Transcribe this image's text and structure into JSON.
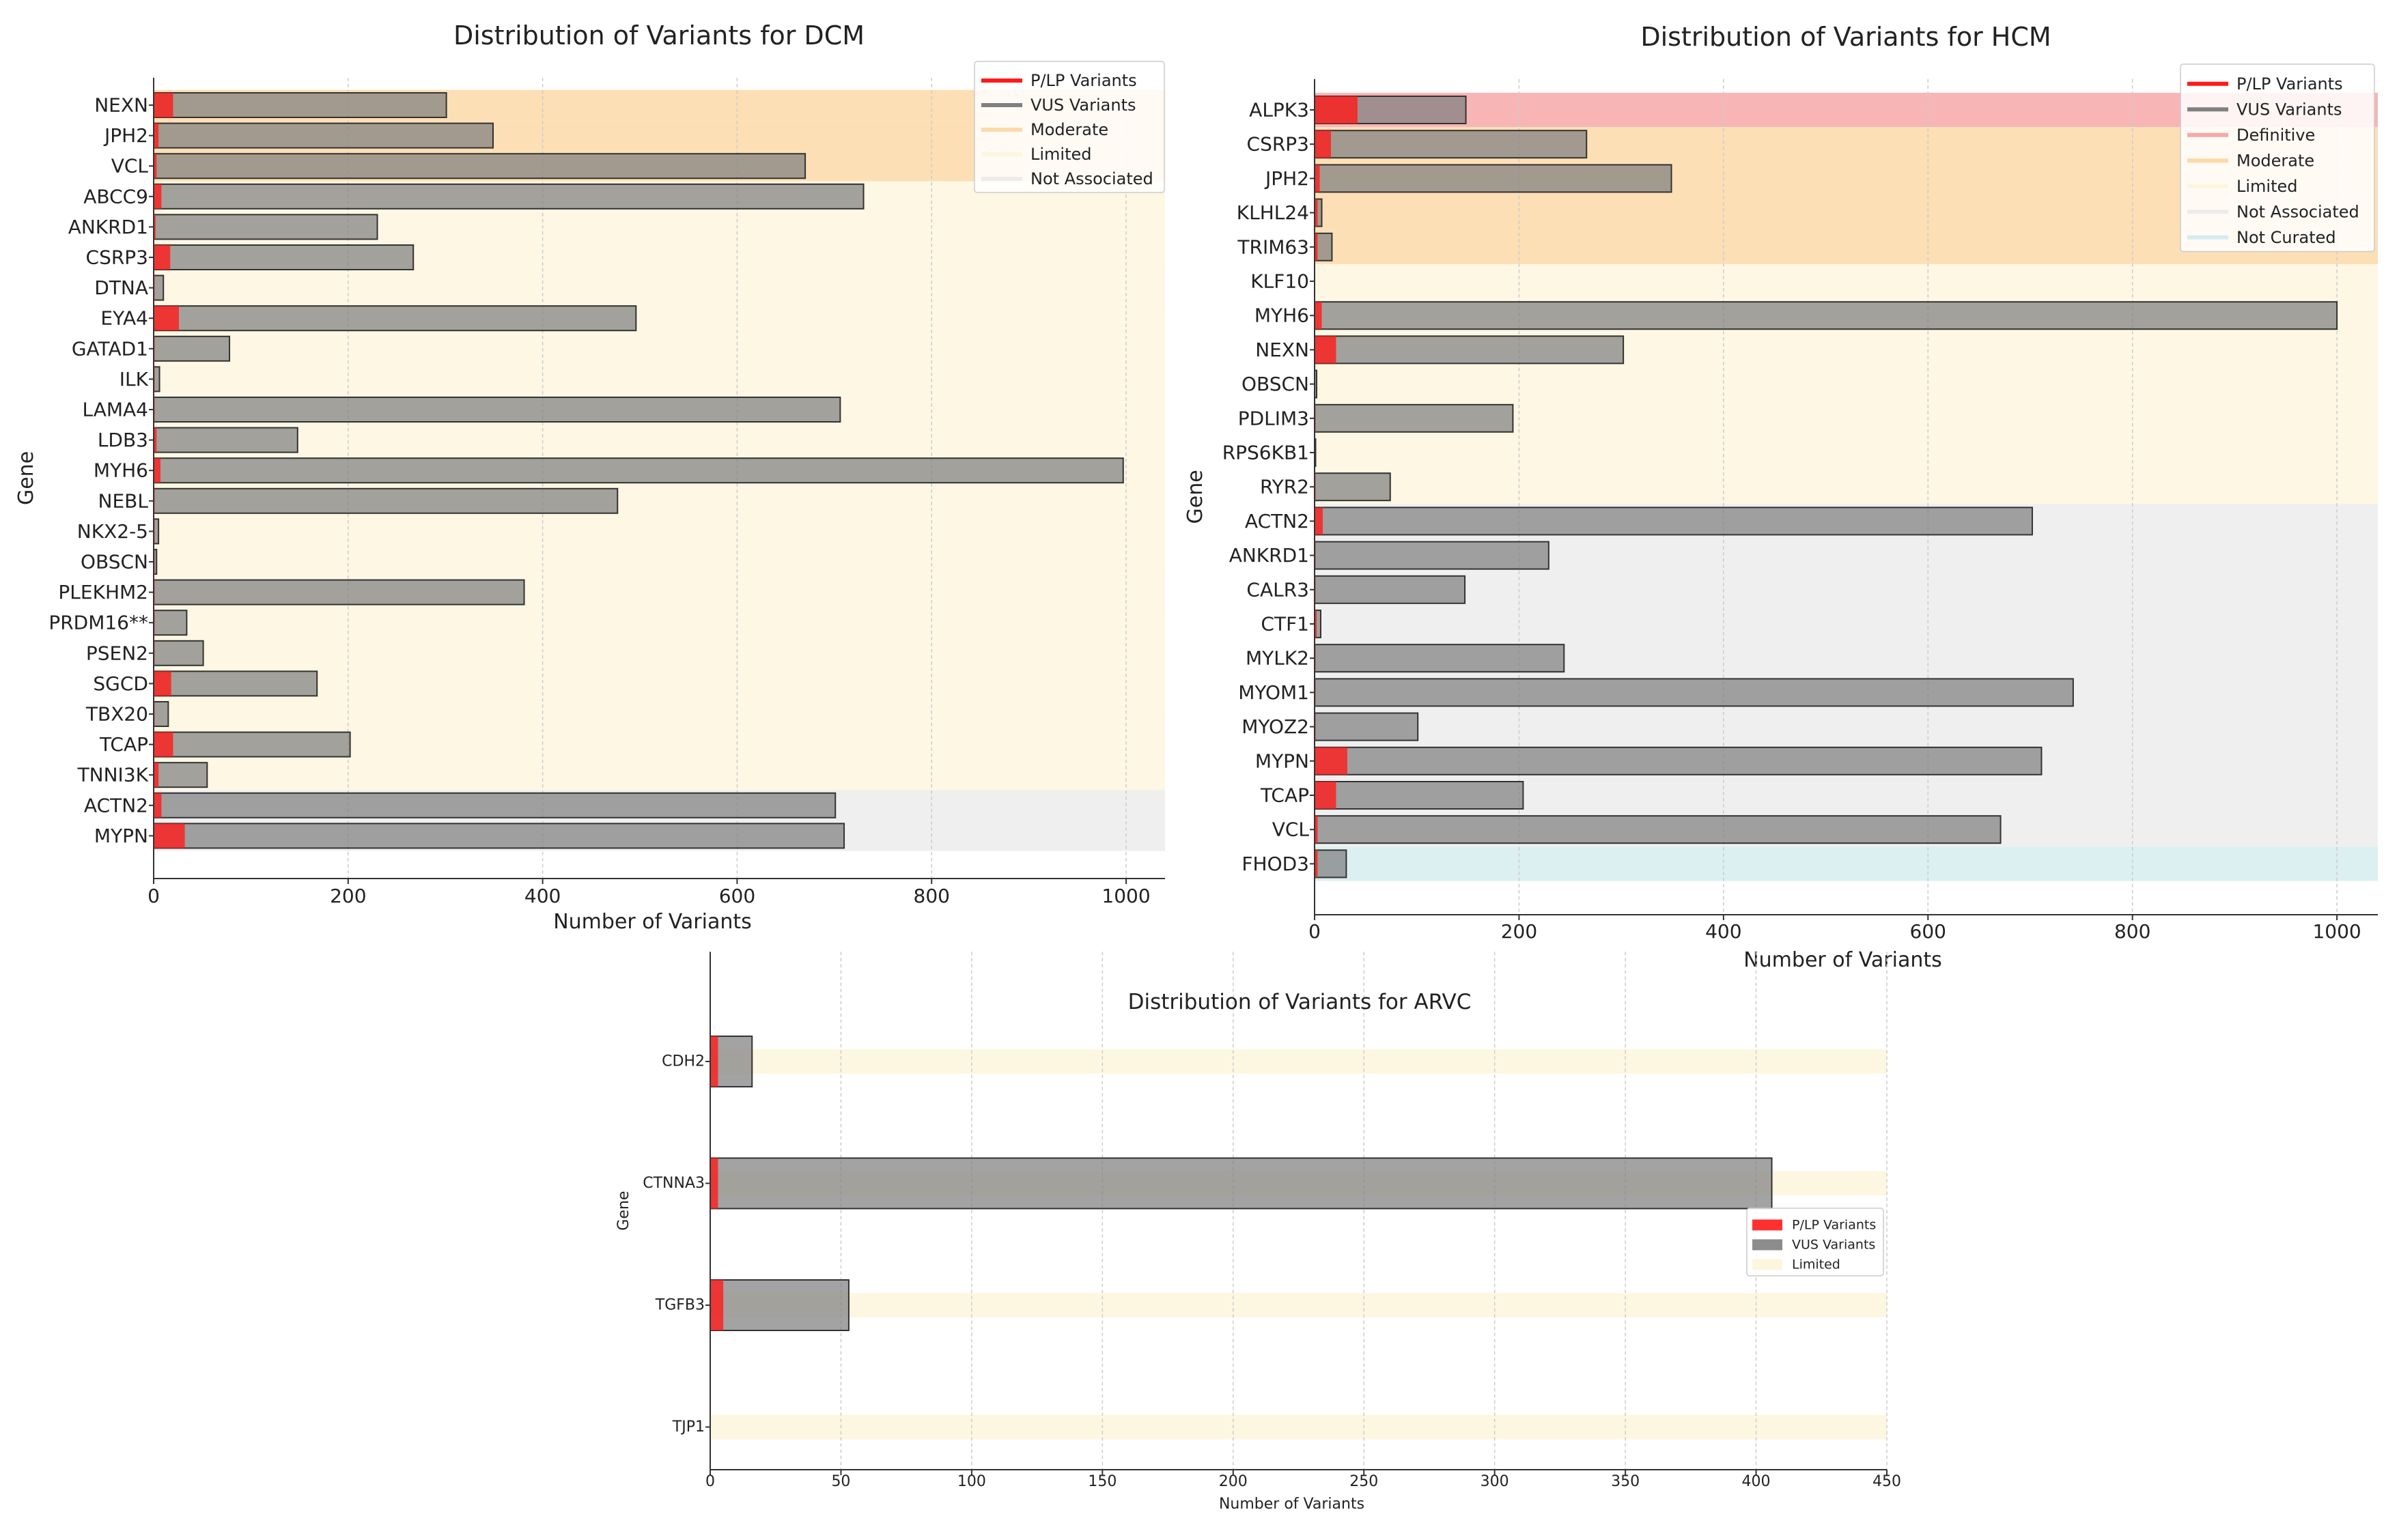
{
  "figure": {
    "description_panels": [
      "DCM",
      "HCM",
      "ARVC"
    ]
  },
  "colors": {
    "plp": "#ff1a1a",
    "vus": "#808080",
    "definitive": "#f7a8a8",
    "moderate": "#fcd9a8",
    "limited": "#fdf6de",
    "not_associated": "#ececec",
    "not_curated": "#d6ecee"
  },
  "chart_data": [
    {
      "id": "dcm",
      "type": "bar",
      "orientation": "horizontal",
      "title": "Distribution of Variants for DCM",
      "xlabel": "Number of Variants",
      "ylabel": "Gene",
      "xlim": [
        0,
        1040
      ],
      "xticks": [
        0,
        200,
        400,
        600,
        800,
        1000
      ],
      "legend_position": "top-right",
      "legend": [
        {
          "label": "P/LP Variants",
          "kind": "plp"
        },
        {
          "label": "VUS Variants",
          "kind": "vus"
        },
        {
          "label": "Moderate",
          "kind": "moderate"
        },
        {
          "label": "Limited",
          "kind": "limited"
        },
        {
          "label": "Not Associated",
          "kind": "not_associated"
        }
      ],
      "categories": [
        "NEXN",
        "JPH2",
        "VCL",
        "ABCC9",
        "ANKRD1",
        "CSRP3",
        "DTNA",
        "EYA4",
        "GATAD1",
        "ILK",
        "LAMA4",
        "LDB3",
        "MYH6",
        "NEBL",
        "NKX2-5",
        "OBSCN",
        "PLEKHM2",
        "PRDM16**",
        "PSEN2",
        "SGCD",
        "TBX20",
        "TCAP",
        "TNNI3K",
        "ACTN2",
        "MYPN"
      ],
      "classification": [
        "moderate",
        "moderate",
        "moderate",
        "limited",
        "limited",
        "limited",
        "limited",
        "limited",
        "limited",
        "limited",
        "limited",
        "limited",
        "limited",
        "limited",
        "limited",
        "limited",
        "limited",
        "limited",
        "limited",
        "limited",
        "limited",
        "limited",
        "limited",
        "not_associated",
        "not_associated"
      ],
      "series": [
        {
          "name": "P/LP Variants",
          "values": [
            20,
            5,
            3,
            8,
            2,
            17,
            1,
            26,
            1,
            1,
            1,
            3,
            7,
            1,
            1,
            1,
            1,
            1,
            1,
            18,
            1,
            20,
            5,
            8,
            32
          ]
        },
        {
          "name": "VUS Variants",
          "values": [
            281,
            344,
            667,
            722,
            228,
            250,
            9,
            470,
            77,
            5,
            705,
            145,
            990,
            476,
            4,
            2,
            380,
            33,
            50,
            150,
            14,
            182,
            50,
            693,
            678
          ]
        }
      ]
    },
    {
      "id": "hcm",
      "type": "bar",
      "orientation": "horizontal",
      "title": "Distribution of Variants for HCM",
      "xlabel": "Number of Variants",
      "ylabel": "Gene",
      "xlim": [
        0,
        1040
      ],
      "xticks": [
        0,
        200,
        400,
        600,
        800,
        1000
      ],
      "legend_position": "top-right",
      "legend": [
        {
          "label": "P/LP Variants",
          "kind": "plp"
        },
        {
          "label": "VUS Variants",
          "kind": "vus"
        },
        {
          "label": "Definitive",
          "kind": "definitive"
        },
        {
          "label": "Moderate",
          "kind": "moderate"
        },
        {
          "label": "Limited",
          "kind": "limited"
        },
        {
          "label": "Not Associated",
          "kind": "not_associated"
        },
        {
          "label": "Not Curated",
          "kind": "not_curated"
        }
      ],
      "categories": [
        "ALPK3",
        "CSRP3",
        "JPH2",
        "KLHL24",
        "TRIM63",
        "KLF10",
        "MYH6",
        "NEXN",
        "OBSCN",
        "PDLIM3",
        "RPS6KB1",
        "RYR2",
        "ACTN2",
        "ANKRD1",
        "CALR3",
        "CTF1",
        "MYLK2",
        "MYOM1",
        "MYOZ2",
        "MYPN",
        "TCAP",
        "VCL",
        "FHOD3"
      ],
      "classification": [
        "definitive",
        "moderate",
        "moderate",
        "moderate",
        "moderate",
        "limited",
        "limited",
        "limited",
        "limited",
        "limited",
        "limited",
        "limited",
        "not_associated",
        "not_associated",
        "not_associated",
        "not_associated",
        "not_associated",
        "not_associated",
        "not_associated",
        "not_associated",
        "not_associated",
        "not_associated",
        "not_curated"
      ],
      "series": [
        {
          "name": "P/LP Variants",
          "values": [
            42,
            16,
            5,
            3,
            3,
            0,
            7,
            21,
            0,
            1,
            0,
            1,
            8,
            1,
            1,
            2,
            1,
            1,
            1,
            32,
            21,
            3,
            3
          ]
        },
        {
          "name": "VUS Variants",
          "values": [
            106,
            250,
            344,
            4,
            14,
            0,
            993,
            281,
            2,
            193,
            1,
            73,
            694,
            228,
            146,
            4,
            243,
            741,
            100,
            679,
            183,
            668,
            28
          ]
        }
      ]
    },
    {
      "id": "arvc",
      "type": "bar",
      "orientation": "horizontal",
      "title": "Distribution of Variants for ARVC",
      "xlabel": "Number of Variants",
      "ylabel": "Gene",
      "xlim": [
        0,
        450
      ],
      "xticks": [
        0,
        50,
        100,
        150,
        200,
        250,
        300,
        350,
        400,
        450
      ],
      "legend_position": "center-right",
      "legend": [
        {
          "label": "P/LP Variants",
          "kind": "plp"
        },
        {
          "label": "VUS Variants",
          "kind": "vus"
        },
        {
          "label": "Limited",
          "kind": "limited"
        }
      ],
      "categories": [
        "CDH2",
        "CTNNA3",
        "TGFB3",
        "TJP1"
      ],
      "classification": [
        "limited",
        "limited",
        "limited",
        "limited"
      ],
      "series": [
        {
          "name": "P/LP Variants",
          "values": [
            3,
            3,
            5,
            0
          ]
        },
        {
          "name": "VUS Variants",
          "values": [
            13,
            403,
            48,
            0
          ]
        }
      ]
    }
  ]
}
